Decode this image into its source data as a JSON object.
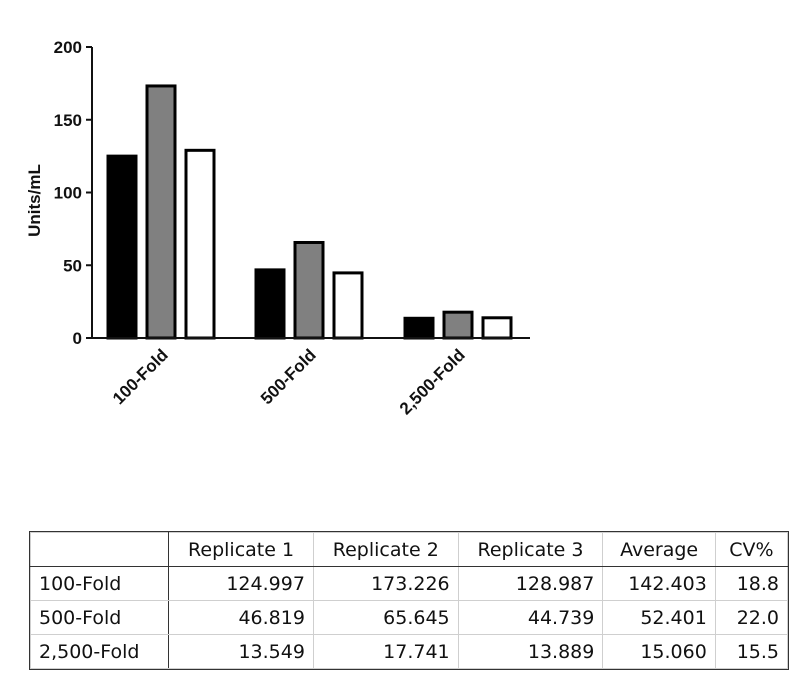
{
  "chart_data": {
    "type": "bar",
    "ylabel": "Units/mL",
    "ylim": [
      0,
      200
    ],
    "yticks": [
      "0",
      "50",
      "100",
      "150",
      "200"
    ],
    "categories": [
      "100-Fold",
      "500-Fold",
      "2,500-Fold"
    ],
    "series": [
      {
        "values": [
          124.997,
          46.819,
          13.549
        ],
        "color": "#000000"
      },
      {
        "values": [
          173.226,
          65.645,
          17.741
        ],
        "color": "#808080"
      },
      {
        "values": [
          128.987,
          44.739,
          13.889
        ],
        "color": "#ffffff"
      }
    ]
  },
  "table": {
    "headers": [
      "",
      "Replicate 1",
      "Replicate 2",
      "Replicate 3",
      "Average",
      "CV%"
    ],
    "rows": [
      [
        "100-Fold",
        "124.997",
        "173.226",
        "128.987",
        "142.403",
        "18.8"
      ],
      [
        "500-Fold",
        "46.819",
        "65.645",
        "44.739",
        "52.401",
        "22.0"
      ],
      [
        "2,500-Fold",
        "13.549",
        "17.741",
        "13.889",
        "15.060",
        "15.5"
      ]
    ]
  }
}
